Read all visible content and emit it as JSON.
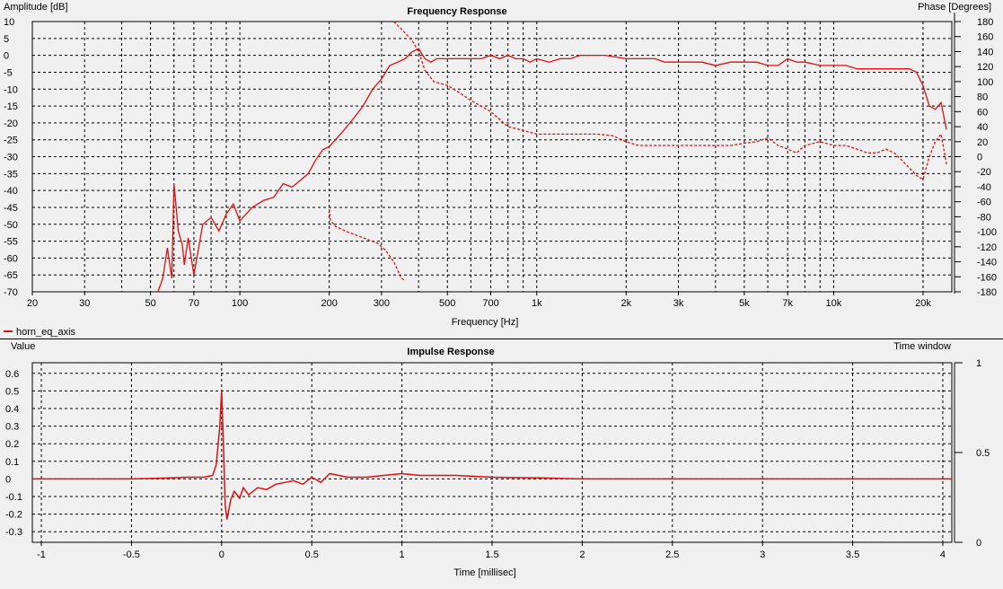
{
  "chart_data": [
    {
      "type": "line",
      "title": "Frequency Response",
      "xlabel": "Frequency [Hz]",
      "ylabel": "Amplitude [dB]",
      "y2label": "Phase [Degrees]",
      "xscale": "log",
      "xlim": [
        20,
        25000
      ],
      "ylim": [
        -70,
        10
      ],
      "y2lim": [
        -180,
        180
      ],
      "grid": true,
      "x_ticks": [
        20,
        30,
        50,
        70,
        100,
        200,
        300,
        500,
        700,
        1000,
        2000,
        3000,
        5000,
        7000,
        10000,
        20000
      ],
      "x_ticklabels": [
        "20",
        "30",
        "50",
        "70",
        "100",
        "200",
        "300",
        "500",
        "700",
        "1k",
        "2k",
        "3k",
        "5k",
        "7k",
        "10k",
        "20k"
      ],
      "y_ticks": [
        10,
        5,
        0,
        -5,
        -10,
        -15,
        -20,
        -25,
        -30,
        -35,
        -40,
        -45,
        -50,
        -55,
        -60,
        -65,
        -70
      ],
      "y2_ticks": [
        180,
        160,
        140,
        120,
        100,
        80,
        60,
        40,
        20,
        0,
        -20,
        -40,
        -60,
        -80,
        -100,
        -120,
        -140,
        -160,
        -180
      ],
      "legend": {
        "placement": "bottom-left",
        "entries": [
          "horn_eq_axis"
        ]
      },
      "series": [
        {
          "name": "horn_eq_axis",
          "axis": "left",
          "style": "solid",
          "x": [
            53,
            55,
            57,
            59,
            60,
            62,
            64,
            65,
            67,
            70,
            73,
            75,
            80,
            85,
            90,
            95,
            100,
            110,
            120,
            130,
            140,
            150,
            160,
            170,
            180,
            190,
            200,
            220,
            240,
            260,
            280,
            300,
            320,
            340,
            360,
            380,
            400,
            420,
            440,
            460,
            500,
            550,
            600,
            650,
            700,
            750,
            800,
            850,
            900,
            950,
            1000,
            1100,
            1200,
            1300,
            1400,
            1500,
            1700,
            2000,
            2200,
            2500,
            2700,
            3000,
            3300,
            3600,
            4000,
            4500,
            5000,
            5500,
            6000,
            6500,
            7000,
            7500,
            8000,
            9000,
            10000,
            11000,
            12000,
            13000,
            14000,
            15000,
            16000,
            17000,
            18000,
            19000,
            20000,
            21000,
            22000,
            23000,
            24000
          ],
          "y": [
            -70,
            -66,
            -57,
            -66,
            -38,
            -52,
            -56,
            -62,
            -54,
            -65,
            -56,
            -50,
            -48,
            -52,
            -47,
            -44,
            -49,
            -45,
            -43,
            -42,
            -38,
            -39,
            -37,
            -35,
            -31,
            -28,
            -27,
            -23,
            -19,
            -15,
            -10,
            -7,
            -3,
            -2,
            -1,
            1,
            2,
            -1,
            -2,
            -1,
            -1,
            -1,
            -1,
            -1,
            0,
            -1,
            0,
            -1,
            -1,
            -2,
            -1,
            -2,
            -1,
            -1,
            0,
            0,
            0,
            -1,
            -1,
            -1,
            -2,
            -2,
            -2,
            -2,
            -3,
            -2,
            -2,
            -2,
            -3,
            -3,
            -1,
            -2,
            -2,
            -3,
            -3,
            -3,
            -4,
            -4,
            -4,
            -4,
            -4,
            -4,
            -4,
            -5,
            -9,
            -15,
            -16,
            -14,
            -22
          ]
        },
        {
          "name": "phase",
          "axis": "right",
          "style": "dashed",
          "x": [
            200,
            202,
            210,
            230,
            260,
            290,
            310,
            330,
            350,
            360
          ],
          "y": [
            -70,
            -85,
            -93,
            -100,
            -108,
            -115,
            -125,
            -140,
            -162,
            -165
          ]
        },
        {
          "name": "phase",
          "axis": "right",
          "style": "dashed",
          "x": [
            330,
            350,
            380,
            400,
            420,
            450,
            500,
            550,
            600,
            700,
            800,
            900,
            1000,
            1200,
            1400,
            1600,
            1800,
            2000,
            2200,
            2500,
            2800,
            3000,
            3500,
            4000,
            4500,
            5000,
            5500,
            6000,
            6500,
            7000,
            7500,
            8000,
            9000,
            10000,
            11000,
            12000,
            13000,
            14000,
            15000,
            16000,
            17000,
            18000,
            19000,
            20000,
            21000,
            22000,
            23000,
            24000
          ],
          "y": [
            180,
            170,
            155,
            140,
            115,
            100,
            95,
            85,
            75,
            60,
            40,
            35,
            30,
            30,
            30,
            30,
            28,
            20,
            15,
            15,
            15,
            15,
            15,
            15,
            15,
            18,
            20,
            25,
            15,
            10,
            5,
            15,
            20,
            15,
            15,
            10,
            5,
            5,
            10,
            5,
            -5,
            -15,
            -25,
            -30,
            0,
            20,
            30,
            -10
          ]
        }
      ]
    },
    {
      "type": "line",
      "title": "Impulse Response",
      "xlabel": "Time [millisec]",
      "ylabel": "Value",
      "y2label": "Time window",
      "xlim": [
        -1.05,
        4.05
      ],
      "ylim": [
        -0.36,
        0.66
      ],
      "y2lim": [
        0,
        1
      ],
      "grid": true,
      "x_ticks": [
        -1,
        -0.5,
        0,
        0.5,
        1,
        1.5,
        2,
        2.5,
        3,
        3.5,
        4
      ],
      "y_ticks": [
        0.6,
        0.5,
        0.4,
        0.3,
        0.2,
        0.1,
        0,
        -0.1,
        -0.2,
        -0.3
      ],
      "y2_ticks": [
        1,
        0.5,
        0
      ],
      "series": [
        {
          "name": "horn_eq_axis",
          "x": [
            -1.05,
            -0.5,
            -0.3,
            -0.2,
            -0.1,
            -0.05,
            -0.03,
            -0.01,
            0,
            0.01,
            0.02,
            0.03,
            0.05,
            0.07,
            0.1,
            0.12,
            0.15,
            0.2,
            0.25,
            0.3,
            0.35,
            0.4,
            0.45,
            0.5,
            0.55,
            0.6,
            0.7,
            0.8,
            0.9,
            1.0,
            1.1,
            1.2,
            1.3,
            1.5,
            1.8,
            2.0,
            2.5,
            3.0,
            3.5,
            4.05
          ],
          "y": [
            0,
            0,
            0.005,
            0.01,
            0.01,
            0.02,
            0.08,
            0.3,
            0.5,
            0.2,
            -0.15,
            -0.23,
            -0.12,
            -0.07,
            -0.11,
            -0.05,
            -0.09,
            -0.05,
            -0.06,
            -0.03,
            -0.02,
            -0.01,
            -0.03,
            0.01,
            -0.02,
            0.03,
            0.01,
            0.01,
            0.02,
            0.03,
            0.02,
            0.02,
            0.02,
            0.01,
            0.005,
            0,
            0,
            0,
            0,
            0
          ]
        }
      ]
    }
  ]
}
